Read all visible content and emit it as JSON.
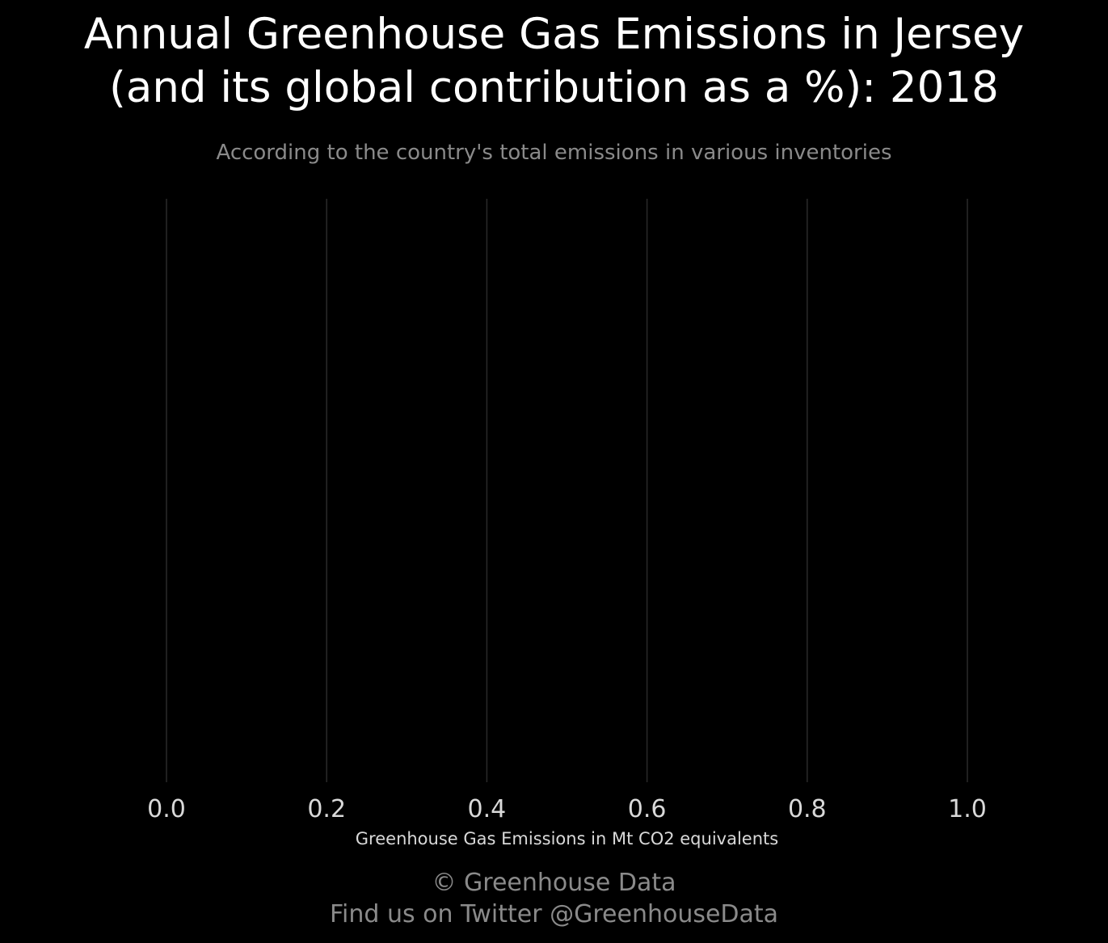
{
  "chart_data": {
    "type": "bar",
    "title_lines": [
      "Annual Greenhouse Gas Emissions in Jersey",
      "(and its global contribution as a %): 2018"
    ],
    "subtitle": "According to the country's total emissions in various inventories",
    "categories": [],
    "values": [],
    "xlabel": "Greenhouse Gas Emissions in Mt CO2 equivalents",
    "xlim": [
      0,
      1
    ],
    "x_ticks": [
      0.0,
      0.2,
      0.4,
      0.6,
      0.8,
      1.0
    ],
    "x_tick_labels": [
      "0.0",
      "0.2",
      "0.4",
      "0.6",
      "0.8",
      "1.0"
    ],
    "orientation": "horizontal",
    "grid": "vertical",
    "colors": {
      "background": "#000000",
      "grid": "#2a2a2a",
      "tick": "#d9d9d9",
      "title": "#ffffff",
      "subtitle": "#8a8a8a"
    }
  },
  "footer": {
    "credit": "© Greenhouse Data",
    "twitter": "Find us on Twitter @GreenhouseData"
  }
}
